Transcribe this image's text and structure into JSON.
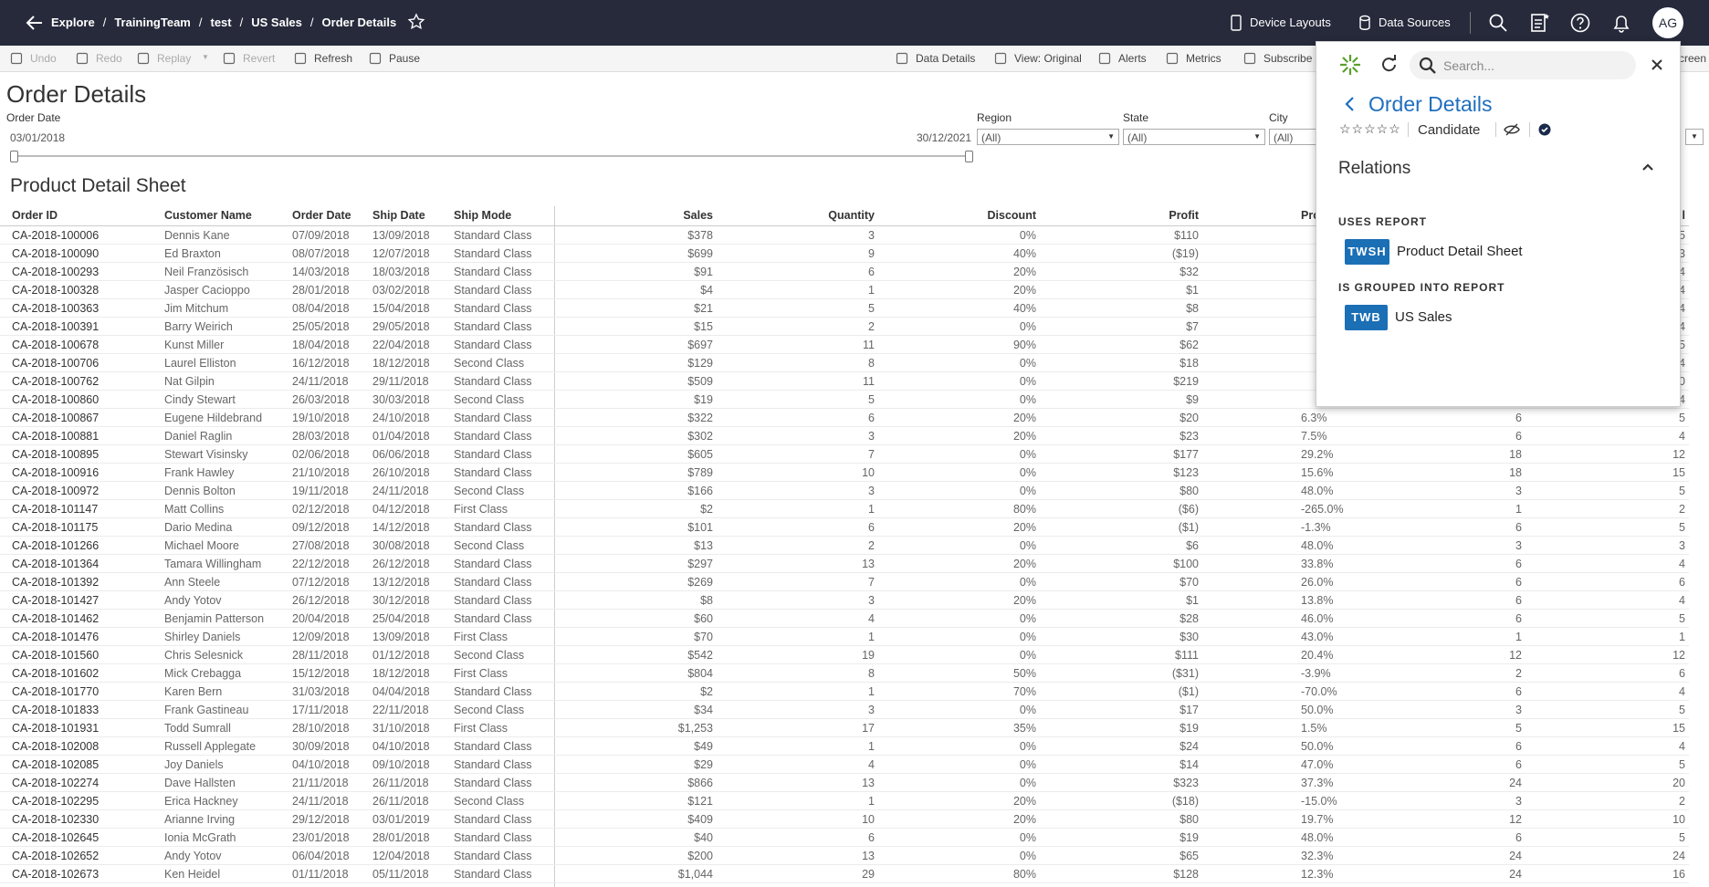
{
  "topbar": {
    "breadcrumb": [
      "Explore",
      "TrainingTeam",
      "test",
      "US Sales",
      "Order Details"
    ],
    "separator": "/",
    "actions": [
      "Device Layouts",
      "Data Sources"
    ],
    "avatar": "AG"
  },
  "toolbar": {
    "left": [
      "Undo",
      "Redo",
      "Replay",
      "Revert",
      "Refresh",
      "Pause"
    ],
    "right": [
      "Data Details",
      "View: Original",
      "Alerts",
      "Metrics",
      "Subscribe",
      "creen"
    ]
  },
  "page_title": "Order Details",
  "filters": {
    "order_date": {
      "label": "Order Date",
      "start": "03/01/2018",
      "end": "30/12/2021"
    },
    "dropdowns": [
      {
        "label": "Region",
        "value": "(All)"
      },
      {
        "label": "State",
        "value": "(All)"
      },
      {
        "label": "City",
        "value": "(All)"
      }
    ]
  },
  "sheet": {
    "title": "Product Detail Sheet",
    "columns": [
      "Order ID",
      "Customer Name",
      "Order Date",
      "Ship Date",
      "Ship Mode",
      "Sales",
      "Quantity",
      "Discount",
      "Profit",
      "Pro",
      null,
      "l"
    ],
    "rows": [
      [
        "CA-2018-100006",
        "Dennis Kane",
        "07/09/2018",
        "13/09/2018",
        "Standard Class",
        "$378",
        "3",
        "0%",
        "$110",
        null,
        null,
        "5"
      ],
      [
        "CA-2018-100090",
        "Ed Braxton",
        "08/07/2018",
        "12/07/2018",
        "Standard Class",
        "$699",
        "9",
        "40%",
        "($19)",
        null,
        null,
        "3"
      ],
      [
        "CA-2018-100293",
        "Neil Französisch",
        "14/03/2018",
        "18/03/2018",
        "Standard Class",
        "$91",
        "6",
        "20%",
        "$32",
        null,
        null,
        "4"
      ],
      [
        "CA-2018-100328",
        "Jasper Cacioppo",
        "28/01/2018",
        "03/02/2018",
        "Standard Class",
        "$4",
        "1",
        "20%",
        "$1",
        null,
        null,
        "4"
      ],
      [
        "CA-2018-100363",
        "Jim Mitchum",
        "08/04/2018",
        "15/04/2018",
        "Standard Class",
        "$21",
        "5",
        "40%",
        "$8",
        null,
        null,
        "4"
      ],
      [
        "CA-2018-100391",
        "Barry Weirich",
        "25/05/2018",
        "29/05/2018",
        "Standard Class",
        "$15",
        "2",
        "0%",
        "$7",
        null,
        null,
        "4"
      ],
      [
        "CA-2018-100678",
        "Kunst Miller",
        "18/04/2018",
        "22/04/2018",
        "Standard Class",
        "$697",
        "11",
        "90%",
        "$62",
        null,
        null,
        "5"
      ],
      [
        "CA-2018-100706",
        "Laurel Elliston",
        "16/12/2018",
        "18/12/2018",
        "Second Class",
        "$129",
        "8",
        "0%",
        "$18",
        null,
        null,
        "4"
      ],
      [
        "CA-2018-100762",
        "Nat Gilpin",
        "24/11/2018",
        "29/11/2018",
        "Standard Class",
        "$509",
        "11",
        "0%",
        "$219",
        null,
        null,
        "0"
      ],
      [
        "CA-2018-100860",
        "Cindy Stewart",
        "26/03/2018",
        "30/03/2018",
        "Second Class",
        "$19",
        "5",
        "0%",
        "$9",
        null,
        null,
        "4"
      ],
      [
        "CA-2018-100867",
        "Eugene Hildebrand",
        "19/10/2018",
        "24/10/2018",
        "Standard Class",
        "$322",
        "6",
        "20%",
        "$20",
        "6.3%",
        "6",
        "5"
      ],
      [
        "CA-2018-100881",
        "Daniel Raglin",
        "28/03/2018",
        "01/04/2018",
        "Standard Class",
        "$302",
        "3",
        "20%",
        "$23",
        "7.5%",
        "6",
        "4"
      ],
      [
        "CA-2018-100895",
        "Stewart Visinsky",
        "02/06/2018",
        "06/06/2018",
        "Standard Class",
        "$605",
        "7",
        "0%",
        "$177",
        "29.2%",
        "18",
        "12"
      ],
      [
        "CA-2018-100916",
        "Frank Hawley",
        "21/10/2018",
        "26/10/2018",
        "Standard Class",
        "$789",
        "10",
        "0%",
        "$123",
        "15.6%",
        "18",
        "15"
      ],
      [
        "CA-2018-100972",
        "Dennis Bolton",
        "19/11/2018",
        "24/11/2018",
        "Second Class",
        "$166",
        "3",
        "0%",
        "$80",
        "48.0%",
        "3",
        "5"
      ],
      [
        "CA-2018-101147",
        "Matt Collins",
        "02/12/2018",
        "04/12/2018",
        "First Class",
        "$2",
        "1",
        "80%",
        "($6)",
        "-265.0%",
        "1",
        "2"
      ],
      [
        "CA-2018-101175",
        "Dario Medina",
        "09/12/2018",
        "14/12/2018",
        "Standard Class",
        "$101",
        "6",
        "20%",
        "($1)",
        "-1.3%",
        "6",
        "5"
      ],
      [
        "CA-2018-101266",
        "Michael Moore",
        "27/08/2018",
        "30/08/2018",
        "Second Class",
        "$13",
        "2",
        "0%",
        "$6",
        "48.0%",
        "3",
        "3"
      ],
      [
        "CA-2018-101364",
        "Tamara Willingham",
        "22/12/2018",
        "26/12/2018",
        "Standard Class",
        "$297",
        "13",
        "20%",
        "$100",
        "33.8%",
        "6",
        "4"
      ],
      [
        "CA-2018-101392",
        "Ann Steele",
        "07/12/2018",
        "13/12/2018",
        "Standard Class",
        "$269",
        "7",
        "0%",
        "$70",
        "26.0%",
        "6",
        "6"
      ],
      [
        "CA-2018-101427",
        "Andy Yotov",
        "26/12/2018",
        "30/12/2018",
        "Standard Class",
        "$8",
        "3",
        "20%",
        "$1",
        "13.8%",
        "6",
        "4"
      ],
      [
        "CA-2018-101462",
        "Benjamin Patterson",
        "20/04/2018",
        "25/04/2018",
        "Standard Class",
        "$60",
        "4",
        "0%",
        "$28",
        "46.0%",
        "6",
        "5"
      ],
      [
        "CA-2018-101476",
        "Shirley Daniels",
        "12/09/2018",
        "13/09/2018",
        "First Class",
        "$70",
        "1",
        "0%",
        "$30",
        "43.0%",
        "1",
        "1"
      ],
      [
        "CA-2018-101560",
        "Chris Selesnick",
        "28/11/2018",
        "01/12/2018",
        "Second Class",
        "$542",
        "19",
        "0%",
        "$111",
        "20.4%",
        "12",
        "12"
      ],
      [
        "CA-2018-101602",
        "Mick Crebagga",
        "15/12/2018",
        "18/12/2018",
        "First Class",
        "$804",
        "8",
        "50%",
        "($31)",
        "-3.9%",
        "2",
        "6"
      ],
      [
        "CA-2018-101770",
        "Karen Bern",
        "31/03/2018",
        "04/04/2018",
        "Standard Class",
        "$2",
        "1",
        "70%",
        "($1)",
        "-70.0%",
        "6",
        "4"
      ],
      [
        "CA-2018-101833",
        "Frank Gastineau",
        "17/11/2018",
        "22/11/2018",
        "Second Class",
        "$34",
        "3",
        "0%",
        "$17",
        "50.0%",
        "3",
        "5"
      ],
      [
        "CA-2018-101931",
        "Todd Sumrall",
        "28/10/2018",
        "31/10/2018",
        "First Class",
        "$1,253",
        "17",
        "35%",
        "$19",
        "1.5%",
        "5",
        "15"
      ],
      [
        "CA-2018-102008",
        "Russell Applegate",
        "30/09/2018",
        "04/10/2018",
        "Standard Class",
        "$49",
        "1",
        "0%",
        "$24",
        "50.0%",
        "6",
        "4"
      ],
      [
        "CA-2018-102085",
        "Joy Daniels",
        "04/10/2018",
        "09/10/2018",
        "Standard Class",
        "$29",
        "4",
        "0%",
        "$14",
        "47.0%",
        "6",
        "5"
      ],
      [
        "CA-2018-102274",
        "Dave Hallsten",
        "21/11/2018",
        "26/11/2018",
        "Standard Class",
        "$866",
        "13",
        "0%",
        "$323",
        "37.3%",
        "24",
        "20"
      ],
      [
        "CA-2018-102295",
        "Erica Hackney",
        "24/11/2018",
        "26/11/2018",
        "Second Class",
        "$121",
        "1",
        "20%",
        "($18)",
        "-15.0%",
        "3",
        "2"
      ],
      [
        "CA-2018-102330",
        "Arianne Irving",
        "29/12/2018",
        "03/01/2019",
        "Standard Class",
        "$409",
        "10",
        "20%",
        "$80",
        "19.7%",
        "12",
        "10"
      ],
      [
        "CA-2018-102645",
        "Ionia McGrath",
        "23/01/2018",
        "28/01/2018",
        "Standard Class",
        "$40",
        "6",
        "0%",
        "$19",
        "48.0%",
        "6",
        "5"
      ],
      [
        "CA-2018-102652",
        "Andy Yotov",
        "06/04/2018",
        "12/04/2018",
        "Standard Class",
        "$200",
        "13",
        "0%",
        "$65",
        "32.3%",
        "24",
        "24"
      ],
      [
        "CA-2018-102673",
        "Ken Heidel",
        "01/11/2018",
        "05/11/2018",
        "Standard Class",
        "$1,044",
        "29",
        "80%",
        "$128",
        "12.3%",
        "24",
        "16"
      ]
    ]
  },
  "panel": {
    "search_placeholder": "Search...",
    "title": "Order Details",
    "status": "Candidate",
    "section": "Relations",
    "groups": [
      {
        "heading": "USES REPORT",
        "badge": "TWSH",
        "name": "Product Detail Sheet"
      },
      {
        "heading": "IS GROUPED INTO REPORT",
        "badge": "TWB",
        "name": "US Sales"
      }
    ]
  }
}
